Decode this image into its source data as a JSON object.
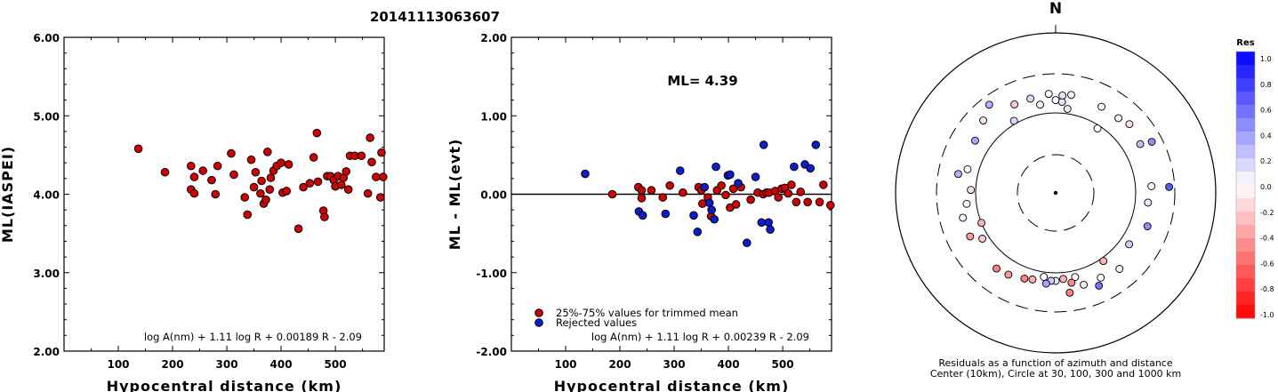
{
  "title": "20141113063607",
  "chart_data": [
    {
      "type": "scatter",
      "ylabel": "ML(IASPEI)",
      "xlabel": "Hypocentral distance (km)",
      "xlim": [
        0,
        590
      ],
      "ylim": [
        2.0,
        6.0
      ],
      "x_ticks": [
        100,
        200,
        300,
        400,
        500
      ],
      "y_tick_labels": [
        "2.00",
        "3.00",
        "4.00",
        "5.00",
        "6.00"
      ],
      "formula": "log A(nm) + 1.11 log R + 0.00189 R - 2.09",
      "color": "#d00000",
      "points": [
        [
          137,
          4.58
        ],
        [
          186,
          4.28
        ],
        [
          234,
          4.36
        ],
        [
          234,
          4.06
        ],
        [
          240,
          4.01
        ],
        [
          240,
          4.22
        ],
        [
          256,
          4.3
        ],
        [
          272,
          4.18
        ],
        [
          279,
          4.0
        ],
        [
          283,
          4.36
        ],
        [
          308,
          4.52
        ],
        [
          313,
          4.25
        ],
        [
          333,
          3.96
        ],
        [
          338,
          3.74
        ],
        [
          345,
          4.44
        ],
        [
          350,
          4.09
        ],
        [
          353,
          4.28
        ],
        [
          362,
          4.01
        ],
        [
          364,
          4.17
        ],
        [
          368,
          3.88
        ],
        [
          372,
          3.93
        ],
        [
          375,
          4.54
        ],
        [
          379,
          4.06
        ],
        [
          381,
          4.21
        ],
        [
          386,
          4.3
        ],
        [
          392,
          4.36
        ],
        [
          400,
          4.4
        ],
        [
          403,
          4.02
        ],
        [
          410,
          4.04
        ],
        [
          414,
          4.38
        ],
        [
          432,
          3.56
        ],
        [
          441,
          4.09
        ],
        [
          453,
          4.14
        ],
        [
          460,
          4.47
        ],
        [
          466,
          4.78
        ],
        [
          468,
          4.16
        ],
        [
          478,
          3.79
        ],
        [
          480,
          3.71
        ],
        [
          485,
          4.23
        ],
        [
          491,
          4.23
        ],
        [
          497,
          4.18
        ],
        [
          500,
          4.1
        ],
        [
          505,
          4.23
        ],
        [
          511,
          4.12
        ],
        [
          515,
          4.21
        ],
        [
          520,
          4.29
        ],
        [
          524,
          4.06
        ],
        [
          527,
          4.49
        ],
        [
          536,
          4.49
        ],
        [
          548,
          4.49
        ],
        [
          560,
          4.01
        ],
        [
          564,
          4.72
        ],
        [
          567,
          4.41
        ],
        [
          575,
          4.22
        ],
        [
          583,
          3.96
        ],
        [
          585,
          4.53
        ],
        [
          588,
          4.22
        ]
      ]
    },
    {
      "type": "scatter",
      "ylabel": "ML - ML(evt)",
      "xlabel": "Hypocentral distance (km)",
      "xlim": [
        0,
        590
      ],
      "ylim": [
        -2.0,
        2.0
      ],
      "x_ticks": [
        100,
        200,
        300,
        400,
        500
      ],
      "y_tick_labels": [
        "-2.00",
        "-1.00",
        "0.00",
        "1.00",
        "2.00"
      ],
      "annotation": "ML=  4.39",
      "formula": "log A(nm) + 1.11 log R + 0.00239 R - 2.09",
      "legend": [
        {
          "label": "25%-75% values for trimmed mean",
          "color": "#d00000"
        },
        {
          "label": "Rejected values",
          "color": "#0a1ed0"
        }
      ],
      "series": [
        {
          "name": "25%-75% values for trimmed mean",
          "color": "#d00000",
          "points": [
            [
              186,
              0.0
            ],
            [
              234,
              0.09
            ],
            [
              240,
              -0.05
            ],
            [
              240,
              0.05
            ],
            [
              258,
              0.05
            ],
            [
              279,
              -0.04
            ],
            [
              292,
              0.11
            ],
            [
              316,
              0.02
            ],
            [
              345,
              0.09
            ],
            [
              350,
              0.05
            ],
            [
              352,
              -0.12
            ],
            [
              362,
              -0.04
            ],
            [
              368,
              -0.28
            ],
            [
              379,
              0.05
            ],
            [
              387,
              0.11
            ],
            [
              395,
              -0.01
            ],
            [
              403,
              -0.17
            ],
            [
              409,
              0.07
            ],
            [
              414,
              -0.13
            ],
            [
              423,
              0.09
            ],
            [
              441,
              -0.07
            ],
            [
              454,
              0.02
            ],
            [
              464,
              0.0
            ],
            [
              470,
              0.02
            ],
            [
              475,
              0.02
            ],
            [
              486,
              0.04
            ],
            [
              492,
              -0.04
            ],
            [
              498,
              0.07
            ],
            [
              504,
              0.08
            ],
            [
              510,
              0.01
            ],
            [
              516,
              0.12
            ],
            [
              525,
              -0.1
            ],
            [
              533,
              0.03
            ],
            [
              546,
              -0.1
            ],
            [
              568,
              -0.1
            ],
            [
              575,
              0.12
            ],
            [
              588,
              -0.14
            ]
          ]
        },
        {
          "name": "Rejected values",
          "color": "#0a1ed0",
          "points": [
            [
              136,
              0.26
            ],
            [
              235,
              -0.22
            ],
            [
              242,
              -0.27
            ],
            [
              284,
              -0.25
            ],
            [
              311,
              0.3
            ],
            [
              336,
              -0.27
            ],
            [
              343,
              -0.48
            ],
            [
              356,
              0.09
            ],
            [
              365,
              -0.11
            ],
            [
              369,
              -0.2
            ],
            [
              374,
              -0.32
            ],
            [
              377,
              0.35
            ],
            [
              399,
              0.24
            ],
            [
              403,
              0.25
            ],
            [
              418,
              0.14
            ],
            [
              434,
              -0.62
            ],
            [
              450,
              0.22
            ],
            [
              461,
              -0.36
            ],
            [
              465,
              0.63
            ],
            [
              474,
              -0.36
            ],
            [
              477,
              -0.45
            ],
            [
              521,
              0.35
            ],
            [
              541,
              0.38
            ],
            [
              551,
              0.33
            ],
            [
              561,
              0.63
            ]
          ]
        }
      ]
    },
    {
      "type": "scatter",
      "subtype": "polar",
      "north_label": "N",
      "caption_line1": "Residuals as a function of azimuth and distance",
      "caption_line2": "Center (10km), Circle at 30, 100, 300 and 1000 km",
      "colorbar_title": "Res",
      "colorbar_tick_labels": [
        "1.0",
        "0.8",
        "0.6",
        "0.4",
        "0.2",
        "0.0",
        "-0.2",
        "-0.4",
        "-0.6",
        "-0.8",
        "-1.0"
      ],
      "points": [
        [
          0,
          0.58,
          0.0
        ],
        [
          4,
          0.57,
          0.1
        ],
        [
          8,
          0.53,
          -0.1
        ],
        [
          9,
          0.62,
          0.05
        ],
        [
          4,
          0.61,
          0.1
        ],
        [
          356,
          0.62,
          0.0
        ],
        [
          350,
          0.56,
          -0.05
        ],
        [
          345,
          0.61,
          0.15
        ],
        [
          335,
          0.61,
          -0.2
        ],
        [
          330,
          0.52,
          0.15
        ],
        [
          323,
          0.69,
          0.3
        ],
        [
          315,
          0.64,
          -0.1
        ],
        [
          303,
          0.6,
          0.35
        ],
        [
          28,
          0.61,
          0.05
        ],
        [
          33,
          0.48,
          0.0
        ],
        [
          40,
          0.61,
          0.05
        ],
        [
          47,
          0.63,
          -0.1
        ],
        [
          60,
          0.61,
          0.25
        ],
        [
          62,
          0.68,
          0.45
        ],
        [
          86,
          0.6,
          0.0
        ],
        [
          87,
          0.71,
          0.65
        ],
        [
          96,
          0.58,
          0.1
        ],
        [
          110,
          0.61,
          0.45
        ],
        [
          125,
          0.56,
          0.2
        ],
        [
          140,
          0.62,
          0.05
        ],
        [
          145,
          0.52,
          -0.3
        ],
        [
          152,
          0.6,
          0.0
        ],
        [
          155,
          0.64,
          0.55
        ],
        [
          163,
          0.6,
          -0.1
        ],
        [
          167,
          0.54,
          0.0
        ],
        [
          170,
          0.57,
          -0.45
        ],
        [
          172,
          0.63,
          -0.5
        ],
        [
          175,
          0.54,
          -0.3
        ],
        [
          180,
          0.55,
          0.05
        ],
        [
          183,
          0.55,
          0.2
        ],
        [
          186,
          0.57,
          0.35
        ],
        [
          188,
          0.53,
          0.0
        ],
        [
          195,
          0.56,
          -0.3
        ],
        [
          200,
          0.57,
          -0.5
        ],
        [
          210,
          0.59,
          -0.4
        ],
        [
          218,
          0.6,
          -0.5
        ],
        [
          238,
          0.54,
          -0.2
        ],
        [
          243,
          0.6,
          -0.4
        ],
        [
          248,
          0.5,
          -0.3
        ],
        [
          255,
          0.6,
          -0.05
        ],
        [
          263,
          0.56,
          0.0
        ],
        [
          272,
          0.53,
          -0.1
        ],
        [
          281,
          0.62,
          0.3
        ],
        [
          285,
          0.57,
          0.0
        ]
      ]
    }
  ]
}
